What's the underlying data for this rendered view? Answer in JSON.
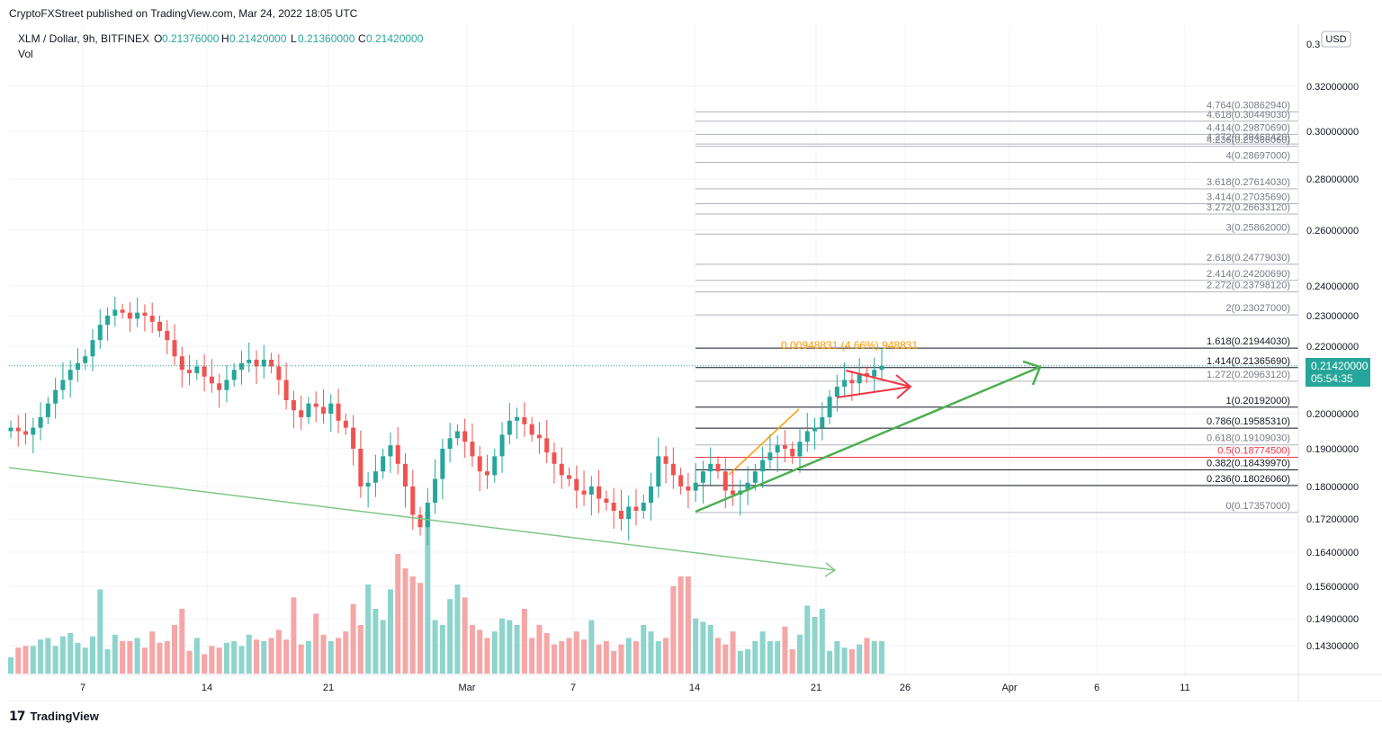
{
  "header": {
    "published": "CryptoFXStreet published on TradingView.com, Mar 24, 2022 18:05 UTC"
  },
  "legend": {
    "symbol": "XLM / Dollar, 9h, BITFINEX",
    "o_label": "O",
    "o": "0.21376000",
    "h_label": "H",
    "h": "0.21420000",
    "l_label": "L",
    "l": "0.21360000",
    "c_label": "C",
    "c": "0.21420000",
    "vol": "Vol"
  },
  "currency": "USD",
  "price_badge": {
    "value": "0.21420000",
    "countdown": "05:54:35"
  },
  "measure_label": "0.00948831 (4.66%) 948831",
  "footer": {
    "brand": "TradingView"
  },
  "colors": {
    "up": "#26a69a",
    "down": "#ef5350",
    "up_vol": "#8dd4cc",
    "down_vol": "#f5a6a6",
    "trend_green": "#4caf50",
    "trend_orange": "#ff9800",
    "arrow_red": "#f23645"
  },
  "chart_data": {
    "type": "candlestick",
    "ylim": [
      0.135,
      0.345
    ],
    "y_ticks": [
      "0.32000000",
      "0.30000000",
      "0.28000000",
      "0.26000000",
      "0.24000000",
      "0.23000000",
      "0.22000000",
      "0.20000000",
      "0.19000000",
      "0.18000000",
      "0.17200000",
      "0.16400000",
      "0.15600000",
      "0.14900000",
      "0.14300000"
    ],
    "y_ticks_top_partial": "0.3",
    "x_ticks": [
      "7",
      "14",
      "21",
      "Mar",
      "7",
      "14",
      "21",
      "26",
      "Apr",
      "6",
      "11"
    ],
    "fib_levels": [
      {
        "ratio": "4.764",
        "price": "0.30862940"
      },
      {
        "ratio": "4.618",
        "price": "0.30449030"
      },
      {
        "ratio": "4.414",
        "price": "0.29870690"
      },
      {
        "ratio": "4.272",
        "price": "0.29468420"
      },
      {
        "ratio": "4.236",
        "price": "0.29366060"
      },
      {
        "ratio": "4",
        "price": "0.28697000"
      },
      {
        "ratio": "3.618",
        "price": "0.27614030"
      },
      {
        "ratio": "3.414",
        "price": "0.27035690"
      },
      {
        "ratio": "3.272",
        "price": "0.26633120"
      },
      {
        "ratio": "3",
        "price": "0.25862000"
      },
      {
        "ratio": "2.618",
        "price": "0.24779030"
      },
      {
        "ratio": "2.414",
        "price": "0.24200690"
      },
      {
        "ratio": "2.272",
        "price": "0.23798120"
      },
      {
        "ratio": "2",
        "price": "0.23027000"
      },
      {
        "ratio": "1.618",
        "price": "0.21944030"
      },
      {
        "ratio": "1.414",
        "price": "0.21365690"
      },
      {
        "ratio": "1.272",
        "price": "0.20963120"
      },
      {
        "ratio": "1",
        "price": "0.20192000"
      },
      {
        "ratio": "0.786",
        "price": "0.19585310"
      },
      {
        "ratio": "0.618",
        "price": "0.19109030"
      },
      {
        "ratio": "0.5",
        "price": "0.18774500"
      },
      {
        "ratio": "0.382",
        "price": "0.18439970"
      },
      {
        "ratio": "0.236",
        "price": "0.18026060"
      },
      {
        "ratio": "0",
        "price": "0.17357000"
      }
    ],
    "close_series": [
      0.196,
      0.195,
      0.194,
      0.196,
      0.199,
      0.203,
      0.207,
      0.21,
      0.213,
      0.215,
      0.217,
      0.222,
      0.227,
      0.23,
      0.232,
      0.231,
      0.229,
      0.231,
      0.23,
      0.228,
      0.225,
      0.222,
      0.217,
      0.213,
      0.212,
      0.214,
      0.211,
      0.209,
      0.207,
      0.21,
      0.213,
      0.215,
      0.216,
      0.214,
      0.216,
      0.214,
      0.21,
      0.204,
      0.201,
      0.199,
      0.203,
      0.202,
      0.2,
      0.203,
      0.198,
      0.196,
      0.19,
      0.18,
      0.181,
      0.184,
      0.188,
      0.191,
      0.186,
      0.18,
      0.173,
      0.17,
      0.176,
      0.182,
      0.19,
      0.193,
      0.195,
      0.192,
      0.188,
      0.184,
      0.183,
      0.188,
      0.194,
      0.198,
      0.199,
      0.197,
      0.194,
      0.193,
      0.189,
      0.186,
      0.183,
      0.182,
      0.179,
      0.178,
      0.18,
      0.177,
      0.176,
      0.174,
      0.172,
      0.175,
      0.174,
      0.176,
      0.18,
      0.188,
      0.186,
      0.183,
      0.18,
      0.179,
      0.181,
      0.184,
      0.186,
      0.184,
      0.179,
      0.178,
      0.179,
      0.181,
      0.184,
      0.187,
      0.189,
      0.191,
      0.19,
      0.188,
      0.192,
      0.195,
      0.196,
      0.199,
      0.205,
      0.208,
      0.21,
      0.209,
      0.212,
      0.211,
      0.213,
      0.2142
    ],
    "volume_series": [
      10,
      16,
      17,
      17,
      21,
      22,
      17,
      23,
      25,
      19,
      16,
      23,
      52,
      15,
      24,
      20,
      20,
      22,
      16,
      26,
      19,
      20,
      30,
      40,
      14,
      22,
      12,
      17,
      16,
      19,
      20,
      17,
      24,
      21,
      20,
      22,
      27,
      21,
      47,
      18,
      20,
      37,
      24,
      20,
      22,
      26,
      43,
      30,
      55,
      40,
      33,
      52,
      74,
      65,
      60,
      56,
      100,
      33,
      30,
      46,
      55,
      47,
      30,
      27,
      22,
      26,
      34,
      33,
      30,
      40,
      22,
      30,
      25,
      18,
      20,
      22,
      26,
      21,
      33,
      18,
      20,
      14,
      18,
      22,
      20,
      30,
      26,
      20,
      22,
      54,
      60,
      60,
      34,
      32,
      30,
      22,
      18,
      26,
      14,
      15,
      20,
      26,
      20,
      20,
      29,
      15,
      24,
      42,
      35,
      40,
      14,
      20,
      16,
      15,
      18,
      22,
      20,
      20
    ],
    "channel_lines": [
      {
        "name": "",
        "from": [
          0,
          0.1855
        ],
        "to": [
          1,
          0.163
        ]
      },
      {
        "name": "",
        "from": [
          0,
          0.1735
        ],
        "to": [
          1,
          0.2125
        ]
      }
    ]
  }
}
